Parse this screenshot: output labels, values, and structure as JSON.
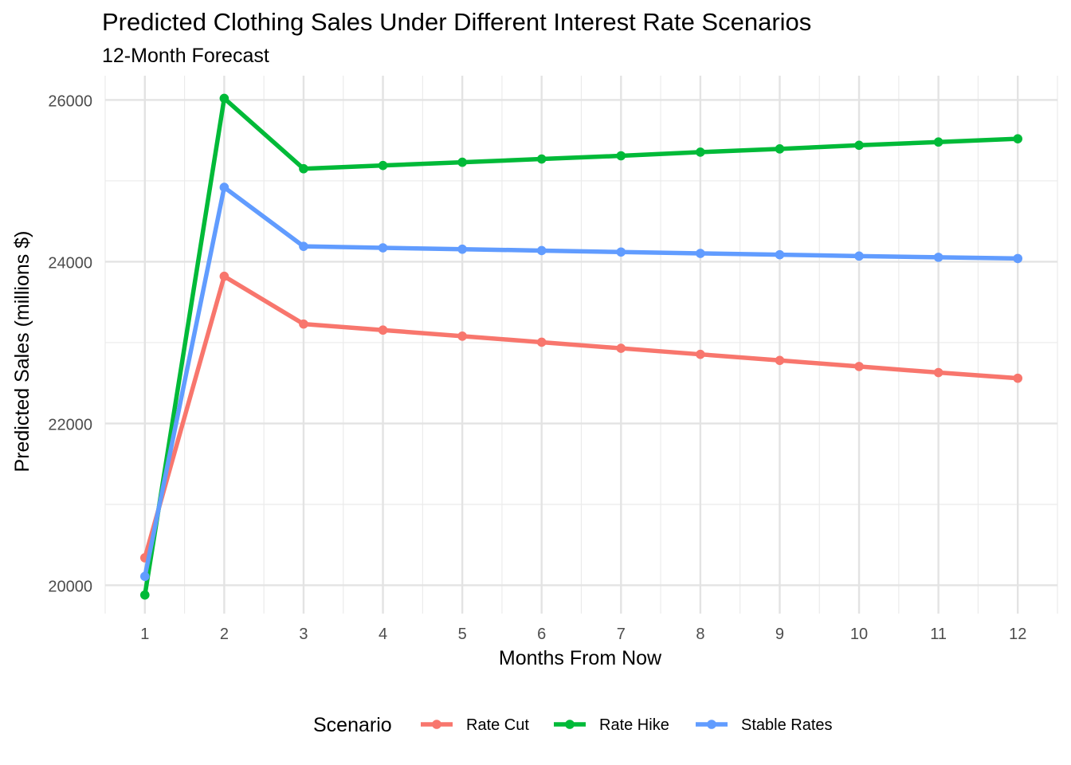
{
  "chart_data": {
    "type": "line",
    "title": "Predicted Clothing Sales Under Different Interest Rate Scenarios",
    "subtitle": "12-Month Forecast",
    "xlabel": "Months From Now",
    "ylabel": "Predicted Sales (millions $)",
    "x": [
      1,
      2,
      3,
      4,
      5,
      6,
      7,
      8,
      9,
      10,
      11,
      12
    ],
    "xticks": [
      1,
      2,
      3,
      4,
      5,
      6,
      7,
      8,
      9,
      10,
      11,
      12
    ],
    "yticks": [
      20000,
      22000,
      24000,
      26000
    ],
    "xlim": [
      0.5,
      12.5
    ],
    "ylim": [
      19650,
      26300
    ],
    "grid": true,
    "legend": {
      "title": "Scenario",
      "position": "bottom"
    },
    "series": [
      {
        "name": "Rate Cut",
        "color": "#F8766D",
        "values": [
          20340,
          23820,
          23230,
          23155,
          23080,
          23005,
          22930,
          22855,
          22780,
          22705,
          22630,
          22560
        ]
      },
      {
        "name": "Rate Hike",
        "color": "#00BA38",
        "values": [
          19880,
          26020,
          25150,
          25190,
          25230,
          25270,
          25310,
          25355,
          25395,
          25440,
          25480,
          25520
        ]
      },
      {
        "name": "Stable Rates",
        "color": "#619CFF",
        "values": [
          20110,
          24920,
          24190,
          24172,
          24155,
          24138,
          24120,
          24103,
          24087,
          24070,
          24055,
          24040
        ]
      }
    ]
  }
}
